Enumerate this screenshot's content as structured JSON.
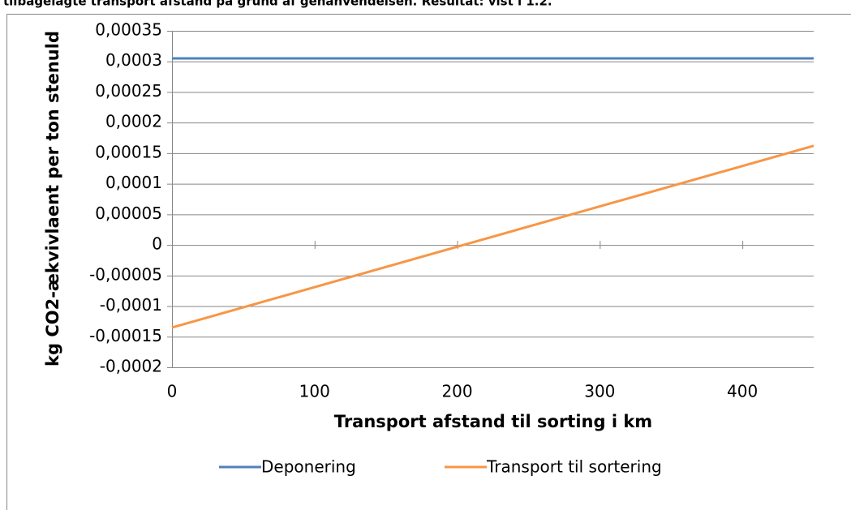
{
  "chart_data": {
    "type": "line",
    "title": "tilbagelagte transport afstand på grund af genanvendelsen. Resultat: vist i 1.2.",
    "xlabel": "Transport afstand til sorting i km",
    "ylabel": "kg CO2-ækvivlaent  per ton stenuld",
    "x": [
      0,
      450
    ],
    "series": [
      {
        "name": "Deponering",
        "color": "#4f81bd",
        "values": [
          0.000305,
          0.000305
        ]
      },
      {
        "name": "Transport til sortering",
        "color": "#f79646",
        "values": [
          -0.000135,
          0.000162
        ]
      }
    ],
    "xlim": [
      0,
      450
    ],
    "xticks": [
      0,
      100,
      200,
      300,
      400
    ],
    "ylim": [
      -0.0002,
      0.00035
    ],
    "yticks": [
      {
        "value": -0.0002,
        "label": "-0,0002"
      },
      {
        "value": -0.00015,
        "label": "-0,00015"
      },
      {
        "value": -0.0001,
        "label": "-0,0001"
      },
      {
        "value": -5e-05,
        "label": "-0,00005"
      },
      0,
      {
        "value": 5e-05,
        "label": "0,00005"
      },
      {
        "value": 0.0001,
        "label": "0,0001"
      },
      {
        "value": 0.00015,
        "label": "0,00015"
      },
      {
        "value": 0.0002,
        "label": "0,0002"
      },
      {
        "value": 0.00025,
        "label": "0,00025"
      },
      {
        "value": 0.0003,
        "label": "0,0003"
      },
      {
        "value": 0.00035,
        "label": "0,00035"
      }
    ],
    "grid": true,
    "legend": "bottom"
  }
}
